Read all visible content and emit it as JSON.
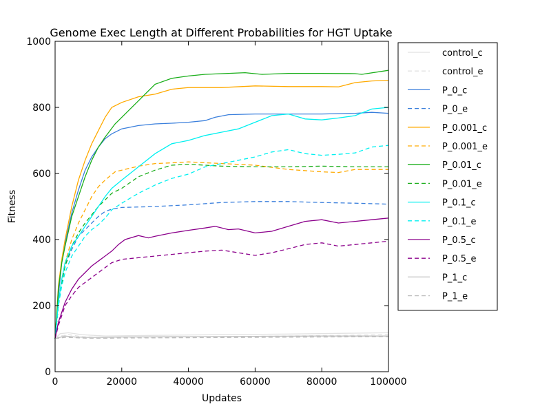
{
  "chart_data": {
    "type": "line",
    "title": "Genome Exec Length at Different Probabilities for HGT Uptake",
    "xlabel": "Updates",
    "ylabel": "Fitness",
    "xlim": [
      0,
      100000
    ],
    "ylim": [
      0,
      1000
    ],
    "xticks": [
      0,
      20000,
      40000,
      60000,
      80000,
      100000
    ],
    "yticks": [
      0,
      200,
      400,
      600,
      800,
      1000
    ],
    "xtick_labels": [
      "0",
      "20000",
      "40000",
      "60000",
      "80000",
      "100000"
    ],
    "ytick_labels": [
      "0",
      "200",
      "400",
      "600",
      "800",
      "1000"
    ],
    "grid": false,
    "legend_position": "outside-right",
    "series": [
      {
        "name": "control_c",
        "color": "#e2e2e2",
        "dash": "solid",
        "x": [
          0,
          1500,
          4000,
          8000,
          15000,
          30000,
          50000,
          70000,
          85000,
          100000
        ],
        "y": [
          100,
          115,
          118,
          112,
          108,
          110,
          112,
          114,
          116,
          118
        ]
      },
      {
        "name": "control_e",
        "color": "#e2e2e2",
        "dash": "dashed",
        "x": [
          0,
          1500,
          4000,
          8000,
          15000,
          30000,
          50000,
          70000,
          85000,
          100000
        ],
        "y": [
          100,
          108,
          112,
          106,
          103,
          104,
          106,
          108,
          110,
          112
        ]
      },
      {
        "name": "P_0_c",
        "color": "#3a7fdc",
        "dash": "solid",
        "x": [
          0,
          1000,
          2000,
          3000,
          5000,
          7000,
          9000,
          11000,
          13000,
          15000,
          17000,
          20000,
          25000,
          30000,
          35000,
          40000,
          45000,
          48000,
          52000,
          60000,
          70000,
          80000,
          90000,
          95000,
          100000
        ],
        "y": [
          100,
          230,
          330,
          390,
          480,
          550,
          610,
          650,
          680,
          705,
          720,
          735,
          745,
          750,
          752,
          755,
          760,
          770,
          778,
          780,
          780,
          780,
          782,
          785,
          782
        ]
      },
      {
        "name": "P_0_e",
        "color": "#3a7fdc",
        "dash": "dashed",
        "x": [
          0,
          1000,
          2000,
          3000,
          5000,
          7000,
          9000,
          11000,
          13000,
          15000,
          17000,
          20000,
          30000,
          40000,
          47000,
          50000,
          60000,
          70000,
          80000,
          90000,
          100000
        ],
        "y": [
          100,
          200,
          270,
          320,
          370,
          410,
          430,
          450,
          470,
          485,
          492,
          497,
          500,
          505,
          510,
          512,
          515,
          515,
          512,
          510,
          507
        ]
      },
      {
        "name": "P_0.001_c",
        "color": "#ffaa00",
        "dash": "solid",
        "x": [
          0,
          1000,
          2000,
          3000,
          5000,
          7000,
          9000,
          11000,
          13000,
          15000,
          17000,
          20000,
          25000,
          30000,
          35000,
          40000,
          50000,
          60000,
          70000,
          80000,
          85000,
          90000,
          95000,
          100000
        ],
        "y": [
          100,
          260,
          340,
          400,
          500,
          580,
          640,
          690,
          730,
          770,
          800,
          815,
          832,
          840,
          855,
          860,
          860,
          865,
          863,
          863,
          862,
          875,
          880,
          882
        ]
      },
      {
        "name": "P_0.001_e",
        "color": "#ffaa00",
        "dash": "dashed",
        "x": [
          0,
          1000,
          2000,
          3000,
          5000,
          7000,
          9000,
          11000,
          13000,
          15000,
          18000,
          20000,
          25000,
          30000,
          35000,
          40000,
          50000,
          60000,
          70000,
          80000,
          85000,
          90000,
          100000
        ],
        "y": [
          100,
          210,
          280,
          330,
          400,
          450,
          490,
          530,
          560,
          580,
          605,
          610,
          622,
          630,
          632,
          635,
          630,
          625,
          612,
          605,
          603,
          612,
          612
        ]
      },
      {
        "name": "P_0.01_c",
        "color": "#1aae1a",
        "dash": "solid",
        "x": [
          0,
          1000,
          2000,
          3000,
          5000,
          7000,
          9000,
          11000,
          13000,
          15000,
          18000,
          20000,
          22000,
          25000,
          28000,
          30000,
          35000,
          40000,
          45000,
          50000,
          57000,
          62000,
          70000,
          80000,
          90000,
          92000,
          100000
        ],
        "y": [
          100,
          250,
          330,
          380,
          470,
          530,
          590,
          640,
          680,
          710,
          750,
          770,
          790,
          820,
          850,
          870,
          888,
          895,
          900,
          902,
          905,
          900,
          903,
          903,
          902,
          900,
          912
        ]
      },
      {
        "name": "P_0.01_e",
        "color": "#1aae1a",
        "dash": "dashed",
        "x": [
          0,
          1000,
          2000,
          3000,
          5000,
          7000,
          9000,
          11000,
          13000,
          15000,
          17000,
          20000,
          25000,
          30000,
          35000,
          40000,
          45000,
          50000,
          60000,
          70000,
          80000,
          90000,
          100000
        ],
        "y": [
          100,
          200,
          270,
          320,
          380,
          420,
          450,
          475,
          500,
          520,
          540,
          555,
          590,
          610,
          625,
          628,
          625,
          622,
          620,
          620,
          622,
          620,
          620
        ]
      },
      {
        "name": "P_0.1_c",
        "color": "#00f0f0",
        "dash": "solid",
        "x": [
          0,
          1000,
          2000,
          3000,
          5000,
          7000,
          9000,
          11000,
          13000,
          15000,
          17000,
          20000,
          25000,
          30000,
          35000,
          40000,
          45000,
          50000,
          55000,
          60000,
          65000,
          70000,
          75000,
          80000,
          85000,
          90000,
          95000,
          100000
        ],
        "y": [
          100,
          210,
          280,
          330,
          380,
          410,
          440,
          470,
          500,
          530,
          555,
          580,
          620,
          660,
          690,
          700,
          715,
          725,
          735,
          755,
          775,
          780,
          765,
          762,
          768,
          775,
          795,
          800
        ]
      },
      {
        "name": "P_0.1_e",
        "color": "#00f0f0",
        "dash": "dashed",
        "x": [
          0,
          1000,
          2000,
          3000,
          5000,
          7000,
          9000,
          11000,
          13000,
          15000,
          17000,
          20000,
          25000,
          30000,
          35000,
          40000,
          45000,
          50000,
          55000,
          60000,
          65000,
          70000,
          75000,
          80000,
          85000,
          90000,
          95000,
          100000
        ],
        "y": [
          100,
          200,
          260,
          300,
          350,
          380,
          410,
          430,
          445,
          465,
          490,
          510,
          540,
          565,
          585,
          598,
          620,
          630,
          640,
          650,
          665,
          672,
          660,
          655,
          658,
          662,
          680,
          685
        ]
      },
      {
        "name": "P_0.5_c",
        "color": "#8b008b",
        "dash": "solid",
        "x": [
          0,
          1000,
          2000,
          3000,
          5000,
          7000,
          9000,
          11000,
          13000,
          15000,
          17000,
          19000,
          21000,
          25000,
          28000,
          30000,
          35000,
          40000,
          45000,
          48000,
          52000,
          55000,
          60000,
          65000,
          70000,
          75000,
          80000,
          85000,
          90000,
          95000,
          100000
        ],
        "y": [
          100,
          150,
          180,
          210,
          250,
          280,
          300,
          320,
          335,
          350,
          365,
          385,
          400,
          412,
          405,
          410,
          420,
          428,
          435,
          440,
          430,
          432,
          420,
          425,
          440,
          455,
          460,
          450,
          455,
          460,
          465
        ]
      },
      {
        "name": "P_0.5_e",
        "color": "#8b008b",
        "dash": "dashed",
        "x": [
          0,
          1000,
          2000,
          3000,
          5000,
          7000,
          9000,
          11000,
          13000,
          15000,
          17000,
          20000,
          25000,
          30000,
          35000,
          40000,
          45000,
          50000,
          55000,
          60000,
          65000,
          70000,
          75000,
          80000,
          85000,
          90000,
          95000,
          100000
        ],
        "y": [
          100,
          140,
          170,
          200,
          230,
          255,
          270,
          285,
          300,
          315,
          330,
          340,
          345,
          350,
          355,
          360,
          365,
          368,
          360,
          352,
          360,
          372,
          385,
          390,
          380,
          385,
          390,
          395
        ]
      },
      {
        "name": "P_1_c",
        "color": "#bebebe",
        "dash": "solid",
        "x": [
          0,
          1000,
          3000,
          6000,
          10000,
          15000,
          20000,
          40000,
          60000,
          80000,
          100000
        ],
        "y": [
          100,
          103,
          108,
          105,
          104,
          104,
          105,
          106,
          107,
          108,
          108
        ]
      },
      {
        "name": "P_1_e",
        "color": "#bebebe",
        "dash": "dashed",
        "x": [
          0,
          1000,
          3000,
          6000,
          10000,
          15000,
          20000,
          40000,
          60000,
          80000,
          100000
        ],
        "y": [
          100,
          101,
          104,
          103,
          101,
          101,
          102,
          103,
          104,
          105,
          106
        ]
      }
    ]
  }
}
